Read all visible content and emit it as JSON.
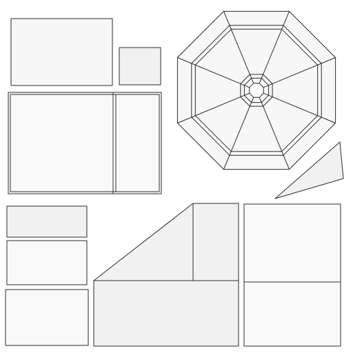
{
  "colors": {
    "background": "#ffffff",
    "stroke": "#2a2a2a",
    "panel_light": "#f7f7f7",
    "panel_mid": "#f1f1f1"
  }
}
